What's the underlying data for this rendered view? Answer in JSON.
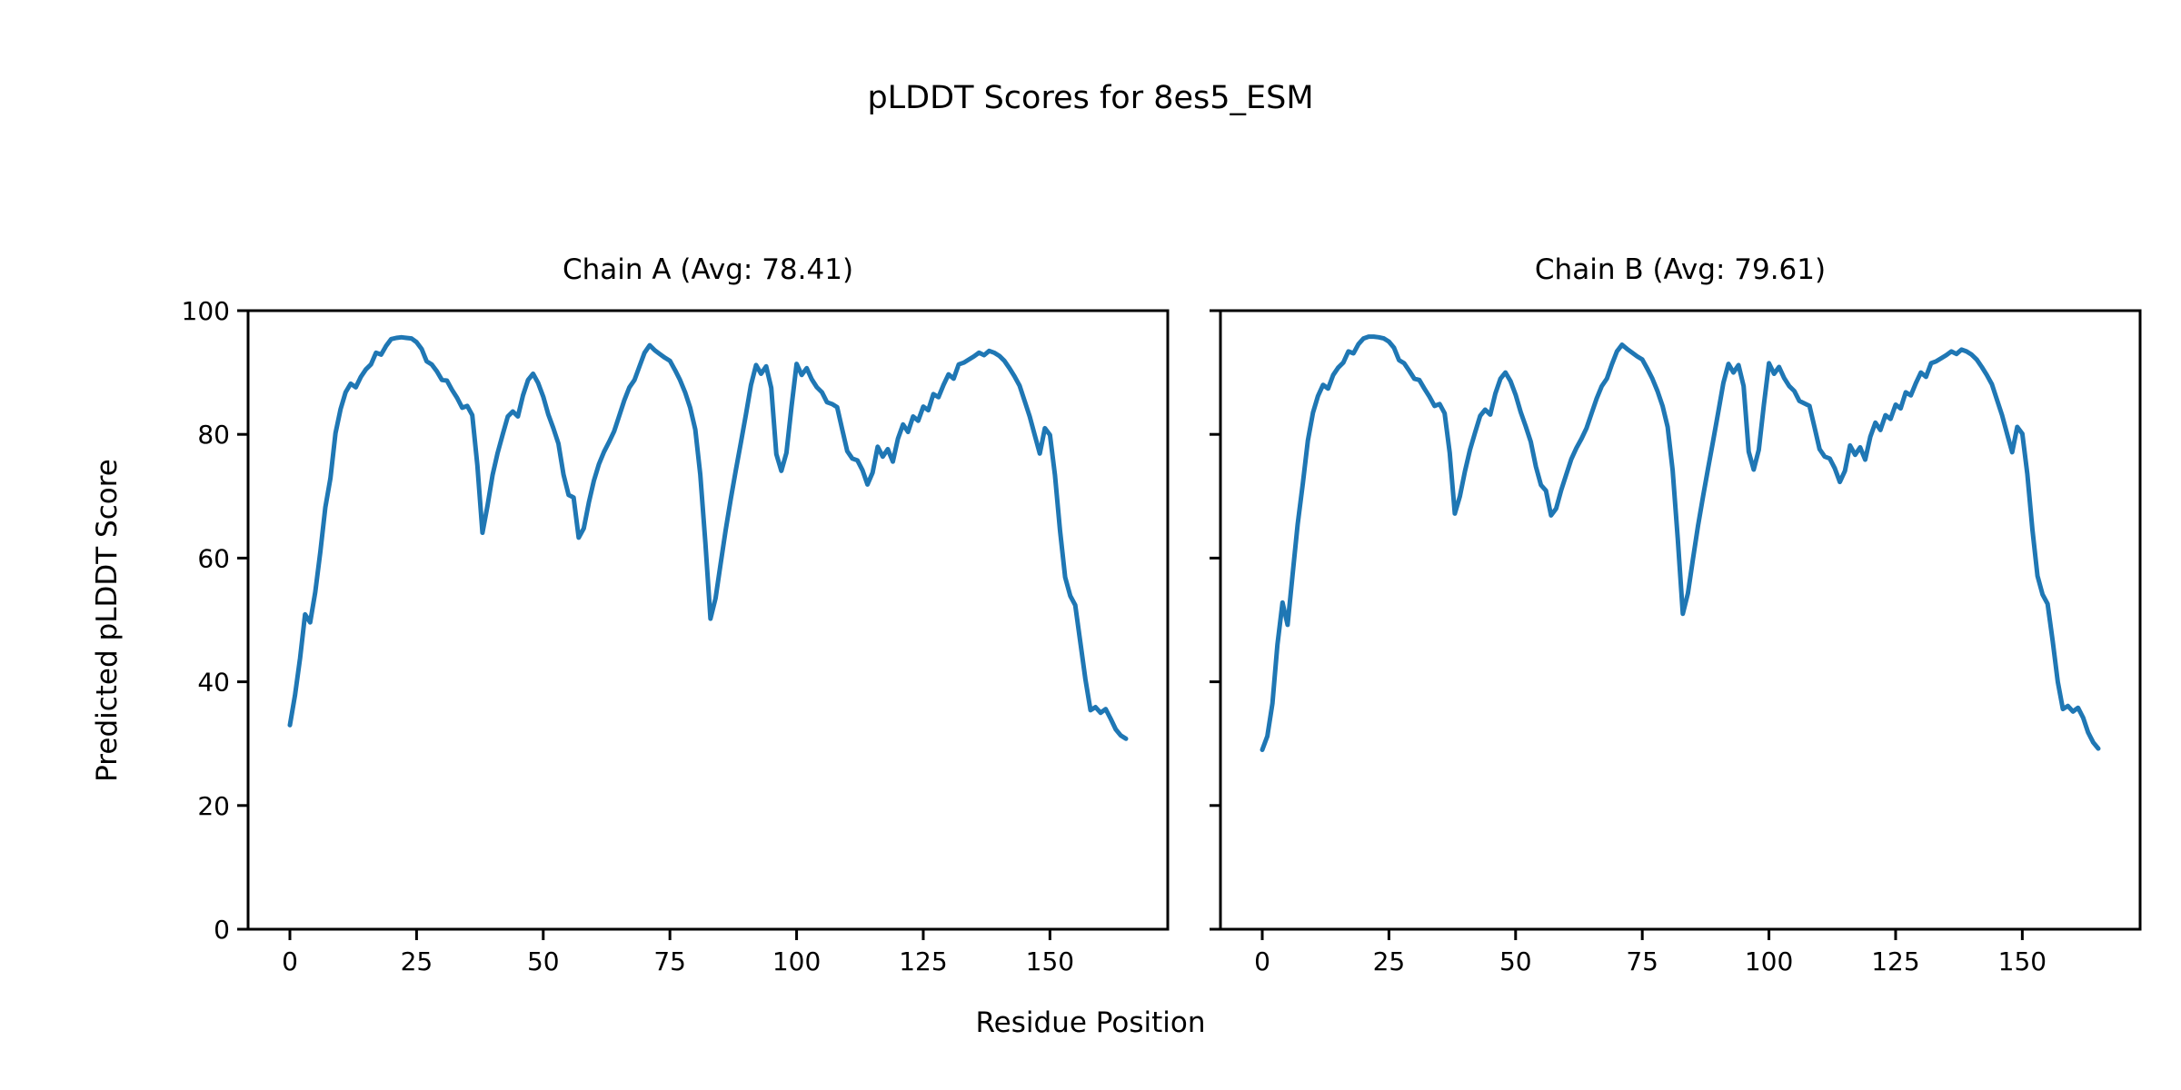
{
  "figure": {
    "suptitle": "pLDDT Scores for 8es5_ESM",
    "xlabel": "Residue Position",
    "ylabel": "Predicted pLDDT Score",
    "background_color": "#ffffff",
    "text_color": "#000000"
  },
  "chart_data": [
    {
      "type": "line",
      "title": "Chain A (Avg: 78.41)",
      "average": 78.41,
      "line_color": "#1f77b4",
      "xticks": [
        0,
        25,
        50,
        75,
        100,
        125,
        150
      ],
      "yticks": [
        0,
        20,
        40,
        60,
        80,
        100
      ],
      "ytick_labels_visible": true,
      "xlim": [
        -8.25,
        173.25
      ],
      "ylim": [
        0,
        100
      ],
      "x_start": 0,
      "values": [
        33.0,
        37.8,
        43.8,
        50.9,
        49.6,
        54.5,
        61.0,
        68.2,
        72.9,
        80.2,
        84.1,
        86.8,
        88.2,
        87.6,
        89.3,
        90.5,
        91.3,
        93.2,
        92.9,
        94.3,
        95.4,
        95.6,
        95.7,
        95.6,
        95.5,
        94.9,
        93.8,
        91.8,
        91.3,
        90.2,
        88.8,
        88.7,
        87.2,
        85.9,
        84.3,
        84.6,
        83.1,
        75.0,
        64.1,
        68.5,
        73.4,
        77.0,
        80.0,
        82.9,
        83.7,
        82.9,
        86.3,
        88.8,
        89.8,
        88.3,
        86.1,
        83.2,
        81.0,
        78.5,
        73.5,
        70.2,
        69.8,
        63.3,
        64.8,
        69.0,
        72.5,
        75.2,
        77.2,
        78.8,
        80.5,
        83.0,
        85.5,
        87.6,
        88.8,
        91.0,
        93.2,
        94.4,
        93.6,
        93.0,
        92.4,
        91.9,
        90.4,
        88.8,
        86.8,
        84.3,
        80.8,
        73.5,
        62.5,
        50.2,
        53.5,
        59.0,
        64.5,
        69.5,
        74.2,
        78.6,
        83.2,
        88.0,
        91.2,
        89.8,
        91.0,
        87.5,
        76.8,
        74.1,
        77.0,
        84.5,
        91.4,
        89.6,
        90.7,
        88.9,
        87.6,
        86.8,
        85.2,
        84.9,
        84.4,
        80.8,
        77.3,
        76.1,
        75.8,
        74.2,
        71.9,
        73.8,
        78.0,
        76.4,
        77.6,
        75.6,
        79.3,
        81.6,
        80.4,
        82.9,
        82.2,
        84.5,
        83.9,
        86.5,
        86.0,
        88.0,
        89.7,
        89.0,
        91.3,
        91.6,
        92.1,
        92.6,
        93.2,
        92.8,
        93.5,
        93.2,
        92.7,
        91.9,
        90.7,
        89.4,
        87.9,
        85.4,
        82.9,
        79.9,
        76.9,
        81.0,
        79.9,
        73.4,
        64.4,
        56.9,
        53.9,
        52.4,
        46.4,
        40.4,
        35.4,
        35.9,
        35.0,
        35.6,
        34.0,
        32.3,
        31.3,
        30.8
      ]
    },
    {
      "type": "line",
      "title": "Chain B (Avg: 79.61)",
      "average": 79.61,
      "line_color": "#1f77b4",
      "xticks": [
        0,
        25,
        50,
        75,
        100,
        125,
        150
      ],
      "yticks": [
        0,
        20,
        40,
        60,
        80,
        100
      ],
      "ytick_labels_visible": false,
      "xlim": [
        -8.25,
        173.25
      ],
      "ylim": [
        0,
        100
      ],
      "x_start": 0,
      "values": [
        29.0,
        31.2,
        36.5,
        46.0,
        52.8,
        49.2,
        57.5,
        65.5,
        72.0,
        79.0,
        83.5,
        86.2,
        88.0,
        87.4,
        89.6,
        90.8,
        91.6,
        93.4,
        93.1,
        94.6,
        95.5,
        95.8,
        95.8,
        95.7,
        95.5,
        95.0,
        94.0,
        92.0,
        91.5,
        90.3,
        89.0,
        88.8,
        87.4,
        86.1,
        84.6,
        84.9,
        83.4,
        77.0,
        67.2,
        70.0,
        74.0,
        77.5,
        80.3,
        83.0,
        84.0,
        83.2,
        86.6,
        89.0,
        90.0,
        88.6,
        86.4,
        83.6,
        81.3,
        78.8,
        74.8,
        71.8,
        70.9,
        66.9,
        68.0,
        71.0,
        73.5,
        76.0,
        77.8,
        79.3,
        81.0,
        83.4,
        85.8,
        87.8,
        89.0,
        91.3,
        93.4,
        94.5,
        93.8,
        93.2,
        92.6,
        92.1,
        90.6,
        89.0,
        87.0,
        84.6,
        81.2,
        74.2,
        63.2,
        51.0,
        54.3,
        59.8,
        65.2,
        70.0,
        74.6,
        79.0,
        83.6,
        88.3,
        91.4,
        90.0,
        91.2,
        87.8,
        77.2,
        74.3,
        77.5,
        84.8,
        91.5,
        89.8,
        90.9,
        89.1,
        87.8,
        87.0,
        85.4,
        85.0,
        84.6,
        81.1,
        77.6,
        76.4,
        76.1,
        74.5,
        72.3,
        74.1,
        78.2,
        76.7,
        77.9,
        75.9,
        79.6,
        81.9,
        80.7,
        83.1,
        82.5,
        84.8,
        84.2,
        86.8,
        86.3,
        88.3,
        90.0,
        89.3,
        91.5,
        91.8,
        92.3,
        92.8,
        93.4,
        93.0,
        93.7,
        93.4,
        92.9,
        92.1,
        90.9,
        89.6,
        88.1,
        85.6,
        83.1,
        80.1,
        77.1,
        81.2,
        80.1,
        73.6,
        64.6,
        57.1,
        54.1,
        52.6,
        46.6,
        40.0,
        35.6,
        36.1,
        35.2,
        35.8,
        34.2,
        31.8,
        30.2,
        29.2
      ]
    }
  ]
}
